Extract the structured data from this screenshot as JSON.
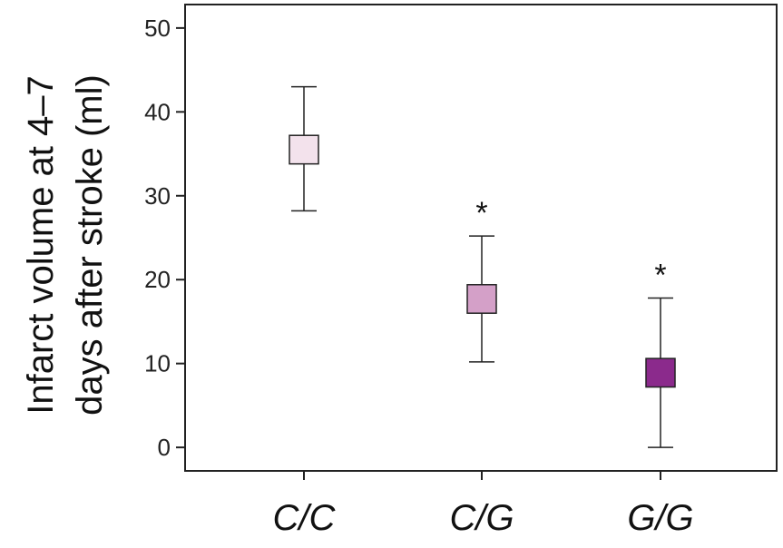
{
  "chart_data": {
    "type": "box",
    "categories": [
      "C/C",
      "C/G",
      "G/G"
    ],
    "series": [
      {
        "boxes": [
          {
            "whisker_low": 28.2,
            "box_low": 33.8,
            "box_high": 37.2,
            "whisker_high": 43.0,
            "color": "#f3e2ec",
            "annotation": ""
          },
          {
            "whisker_low": 10.2,
            "box_low": 16.0,
            "box_high": 19.4,
            "whisker_high": 25.2,
            "color": "#d4a0c8",
            "annotation": "*"
          },
          {
            "whisker_low": 0.0,
            "box_low": 7.2,
            "box_high": 10.6,
            "whisker_high": 17.8,
            "color": "#8b2a8c",
            "annotation": "*"
          }
        ]
      }
    ],
    "ylabel_line1": "Infarct volume at 4–7",
    "ylabel_line2": "days after stroke (ml)",
    "ylim": [
      -2.8,
      52.8
    ],
    "yticks": [
      0,
      10,
      20,
      30,
      40,
      50
    ],
    "grid": false
  }
}
